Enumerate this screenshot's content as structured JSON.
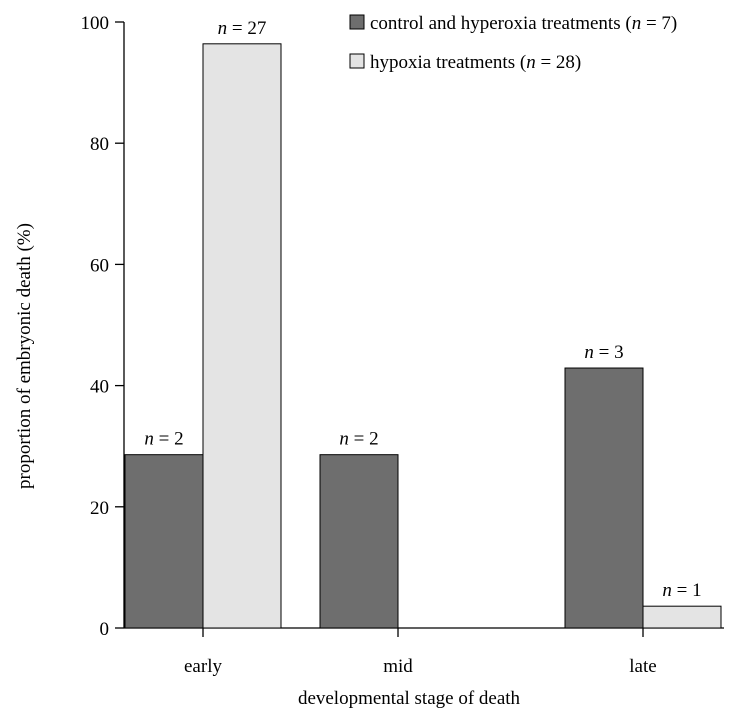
{
  "chart_data": {
    "type": "bar",
    "categories": [
      "early",
      "mid",
      "late"
    ],
    "xlabel": "developmental stage of death",
    "ylabel": "proportion of embryonic death (%)",
    "ylim": [
      0,
      100
    ],
    "yticks": [
      0,
      20,
      40,
      60,
      80,
      100
    ],
    "grid": false,
    "legend_position": "top-right",
    "series": [
      {
        "name": "control and hyperoxia treatments (n = 7)",
        "name_prefix": "control and hyperoxia treatments (",
        "name_n": "n",
        "name_suffix": " = 7)",
        "color": "#6e6e6e",
        "values": [
          28.6,
          28.6,
          42.9
        ],
        "labels": [
          "2",
          "2",
          "3"
        ]
      },
      {
        "name": "hypoxia treatments (n = 28)",
        "name_prefix": "hypoxia treatments (",
        "name_n": "n",
        "name_suffix": " = 28)",
        "color": "#e4e4e4",
        "values": [
          96.4,
          0,
          3.6
        ],
        "labels": [
          "27",
          null,
          "1"
        ]
      }
    ],
    "label_prefix": "n",
    "label_sep": " = "
  }
}
